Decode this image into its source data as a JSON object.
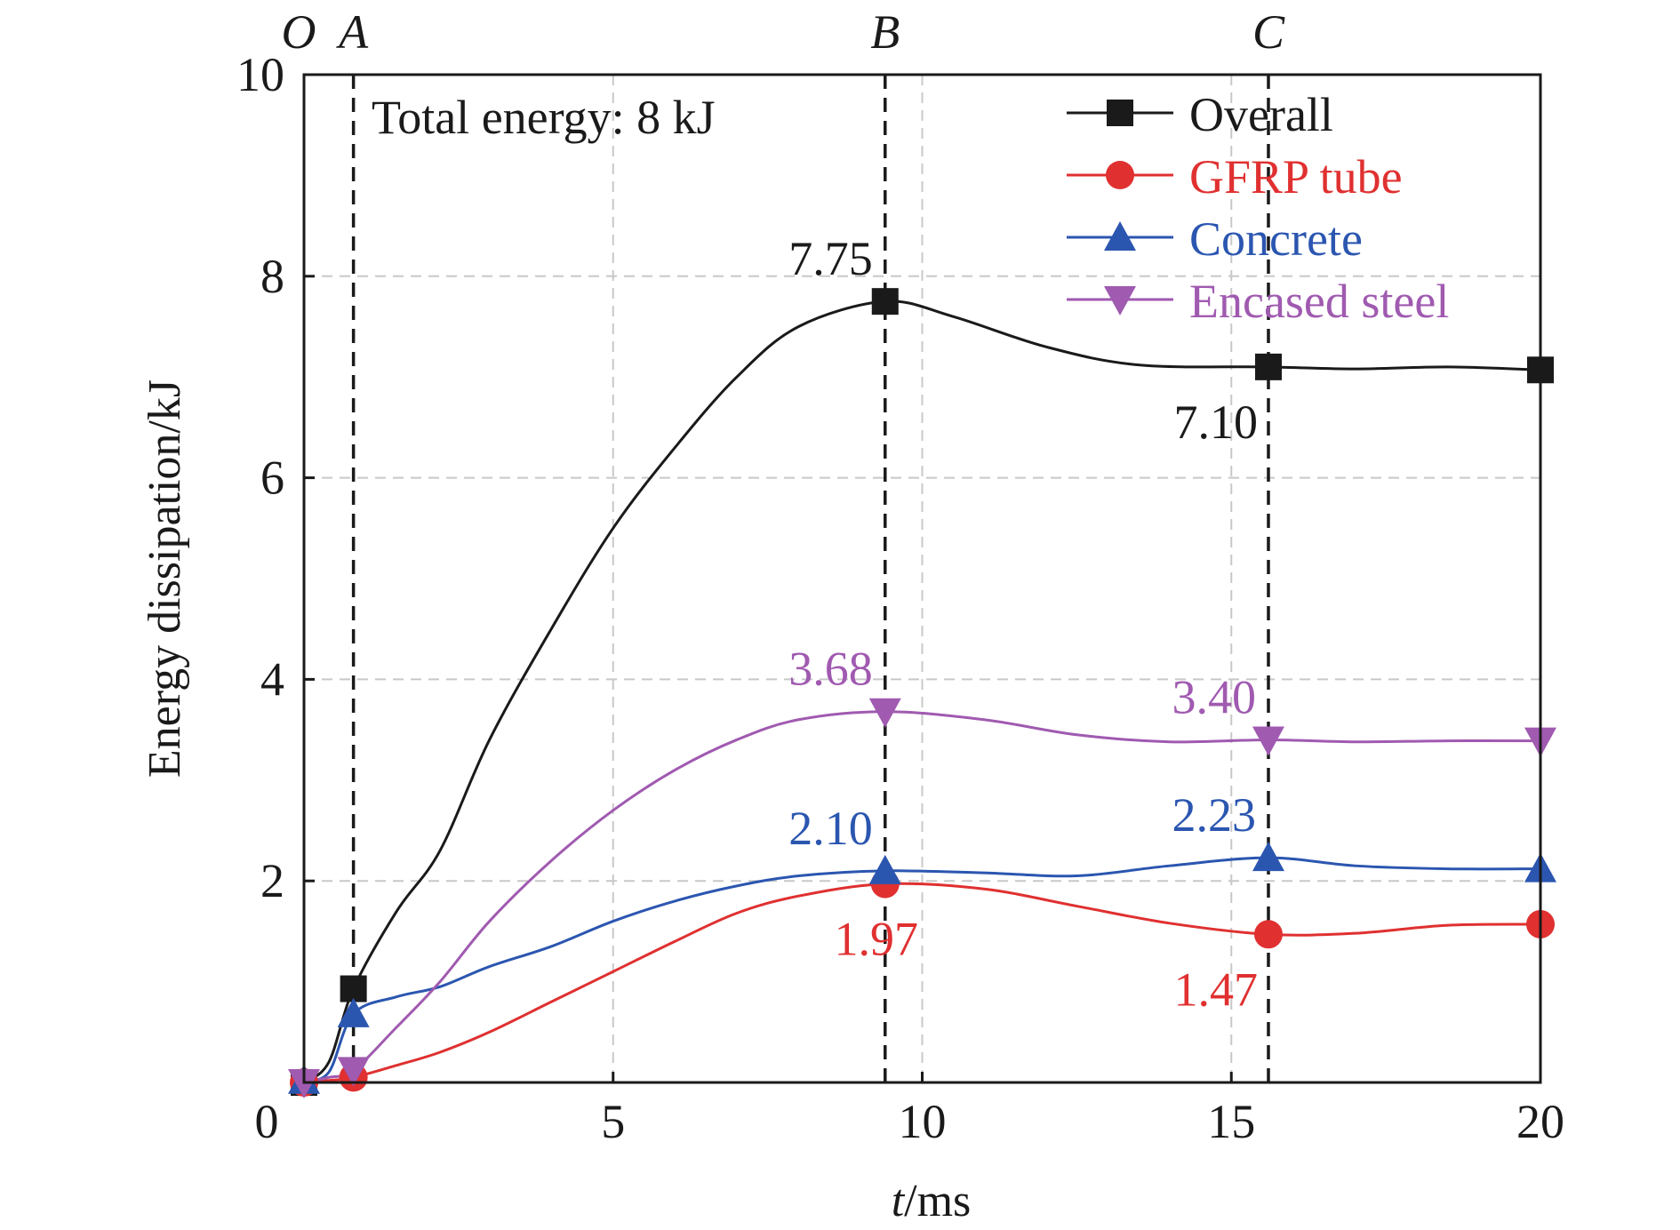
{
  "chart_data": {
    "type": "line",
    "xlabel_italic": "t",
    "xlabel_unit": "/ms",
    "ylabel": "Energy dissipation/kJ",
    "xlim": [
      0,
      20
    ],
    "ylim": [
      0,
      10
    ],
    "xticks": [
      "0",
      "5",
      "10",
      "15",
      "20"
    ],
    "yticks": [
      "2",
      "4",
      "6",
      "8",
      "10"
    ],
    "grid": true,
    "legend_position": "top-right",
    "annotation": "Total energy: 8 kJ",
    "markers": [
      {
        "label": "O",
        "x": 0
      },
      {
        "label": "A",
        "x": 0.8
      },
      {
        "label": "B",
        "x": 9.4
      },
      {
        "label": "C",
        "x": 15.6
      }
    ],
    "series": [
      {
        "name": "Overall",
        "color": "#1a1a1a",
        "marker": "square",
        "points": [
          [
            0,
            0
          ],
          [
            0.8,
            0.93
          ],
          [
            9.4,
            7.75
          ],
          [
            15.6,
            7.1
          ],
          [
            20,
            7.07
          ]
        ],
        "curve": [
          [
            0,
            0
          ],
          [
            0.4,
            0.2
          ],
          [
            0.8,
            0.93
          ],
          [
            1.5,
            1.7
          ],
          [
            2.2,
            2.3
          ],
          [
            3,
            3.4
          ],
          [
            4,
            4.5
          ],
          [
            5,
            5.5
          ],
          [
            6,
            6.3
          ],
          [
            7,
            7.0
          ],
          [
            8,
            7.5
          ],
          [
            9.4,
            7.75
          ],
          [
            10.5,
            7.6
          ],
          [
            12,
            7.3
          ],
          [
            13.5,
            7.12
          ],
          [
            15.6,
            7.1
          ],
          [
            17,
            7.08
          ],
          [
            18.5,
            7.1
          ],
          [
            20,
            7.07
          ]
        ]
      },
      {
        "name": "GFRP tube",
        "color": "#e03030",
        "marker": "circle",
        "points": [
          [
            0,
            0
          ],
          [
            0.8,
            0.05
          ],
          [
            9.4,
            1.97
          ],
          [
            15.6,
            1.47
          ],
          [
            20,
            1.57
          ]
        ],
        "curve": [
          [
            0,
            0
          ],
          [
            0.4,
            0.02
          ],
          [
            0.8,
            0.05
          ],
          [
            1.5,
            0.17
          ],
          [
            2.2,
            0.3
          ],
          [
            3,
            0.5
          ],
          [
            4,
            0.8
          ],
          [
            5,
            1.1
          ],
          [
            6,
            1.4
          ],
          [
            7,
            1.68
          ],
          [
            8,
            1.85
          ],
          [
            9.4,
            1.97
          ],
          [
            11,
            1.92
          ],
          [
            12.5,
            1.75
          ],
          [
            14,
            1.58
          ],
          [
            15.6,
            1.47
          ],
          [
            17,
            1.48
          ],
          [
            18.5,
            1.56
          ],
          [
            20,
            1.57
          ]
        ]
      },
      {
        "name": "Concrete",
        "color": "#2b56b0",
        "marker": "triangle-up",
        "points": [
          [
            0,
            0.02
          ],
          [
            0.8,
            0.68
          ],
          [
            9.4,
            2.1
          ],
          [
            15.6,
            2.23
          ],
          [
            20,
            2.12
          ]
        ],
        "curve": [
          [
            0,
            0.02
          ],
          [
            0.4,
            0.1
          ],
          [
            0.8,
            0.68
          ],
          [
            1.5,
            0.85
          ],
          [
            2.2,
            0.95
          ],
          [
            3,
            1.15
          ],
          [
            4,
            1.35
          ],
          [
            5,
            1.6
          ],
          [
            6,
            1.8
          ],
          [
            7,
            1.95
          ],
          [
            8,
            2.05
          ],
          [
            9.4,
            2.1
          ],
          [
            11,
            2.08
          ],
          [
            12.5,
            2.05
          ],
          [
            14,
            2.15
          ],
          [
            15.6,
            2.23
          ],
          [
            17,
            2.15
          ],
          [
            18.5,
            2.12
          ],
          [
            20,
            2.12
          ]
        ]
      },
      {
        "name": "Encased steel",
        "color": "#a05ab0",
        "marker": "triangle-down",
        "points": [
          [
            0,
            0
          ],
          [
            0.8,
            0.12
          ],
          [
            9.4,
            3.68
          ],
          [
            15.6,
            3.4
          ],
          [
            20,
            3.39
          ]
        ],
        "curve": [
          [
            0,
            0
          ],
          [
            0.4,
            0.05
          ],
          [
            0.8,
            0.12
          ],
          [
            1.5,
            0.55
          ],
          [
            2.2,
            1.0
          ],
          [
            3,
            1.6
          ],
          [
            4,
            2.2
          ],
          [
            5,
            2.7
          ],
          [
            6,
            3.1
          ],
          [
            7,
            3.4
          ],
          [
            8,
            3.6
          ],
          [
            9.4,
            3.68
          ],
          [
            11,
            3.6
          ],
          [
            12.5,
            3.45
          ],
          [
            14,
            3.38
          ],
          [
            15.6,
            3.4
          ],
          [
            17,
            3.38
          ],
          [
            18.5,
            3.39
          ],
          [
            20,
            3.39
          ]
        ]
      }
    ],
    "data_labels": [
      {
        "text": "7.75",
        "series": "Overall",
        "x": 9.4,
        "y": 7.75,
        "pos": "above-left"
      },
      {
        "text": "7.10",
        "series": "Overall",
        "x": 15.6,
        "y": 7.1,
        "pos": "below-left"
      },
      {
        "text": "3.68",
        "series": "Encased steel",
        "x": 9.4,
        "y": 3.68,
        "pos": "above-left"
      },
      {
        "text": "3.40",
        "series": "Encased steel",
        "x": 15.6,
        "y": 3.4,
        "pos": "above-left"
      },
      {
        "text": "2.10",
        "series": "Concrete",
        "x": 9.4,
        "y": 2.1,
        "pos": "above-left"
      },
      {
        "text": "2.23",
        "series": "Concrete",
        "x": 15.6,
        "y": 2.23,
        "pos": "above-left"
      },
      {
        "text": "1.97",
        "series": "GFRP tube",
        "x": 9.4,
        "y": 1.97,
        "pos": "below"
      },
      {
        "text": "1.47",
        "series": "GFRP tube",
        "x": 15.6,
        "y": 1.47,
        "pos": "below-left"
      }
    ]
  }
}
